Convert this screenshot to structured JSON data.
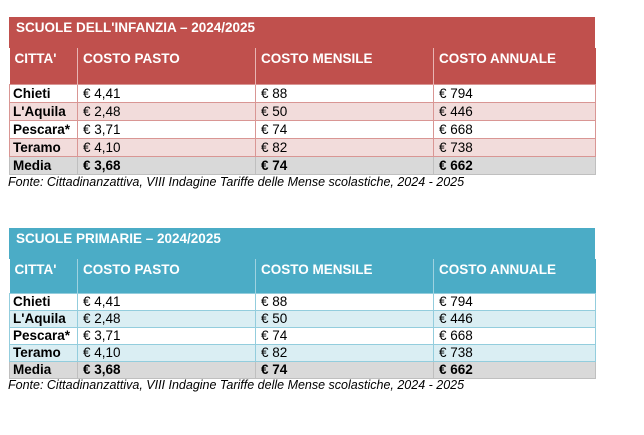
{
  "tables": [
    {
      "title": "SCUOLE DELL'INFANZIA – 2024/2025",
      "headers": [
        "CITTA'",
        "COSTO PASTO",
        "COSTO MENSILE",
        "COSTO ANNUALE"
      ],
      "rows": [
        [
          "Chieti",
          "€ 4,41",
          "€ 88",
          "€ 794"
        ],
        [
          "L'Aquila",
          "€ 2,48",
          "€ 50",
          "€ 446"
        ],
        [
          "Pescara*",
          "€ 3,71",
          "€ 74",
          "€ 668"
        ],
        [
          "Teramo",
          "€ 4,10",
          "€ 82",
          "€ 738"
        ]
      ],
      "average": [
        "Media",
        "€ 3,68",
        "€ 74",
        "€ 662"
      ],
      "source": "Fonte: Cittadinanzattiva, VIII Indagine Tariffe delle Mense scolastiche, 2024 - 2025",
      "accent_color": "#c0504d"
    },
    {
      "title": "SCUOLE PRIMARIE – 2024/2025",
      "headers": [
        "CITTA'",
        "COSTO PASTO",
        "COSTO MENSILE",
        "COSTO ANNUALE"
      ],
      "rows": [
        [
          "Chieti",
          "€ 4,41",
          "€ 88",
          "€ 794"
        ],
        [
          "L'Aquila",
          "€ 2,48",
          "€ 50",
          "€ 446"
        ],
        [
          "Pescara*",
          "€ 3,71",
          "€ 74",
          "€ 668"
        ],
        [
          "Teramo",
          "€ 4,10",
          "€ 82",
          "€ 738"
        ]
      ],
      "average": [
        "Media",
        "€ 3,68",
        "€ 74",
        "€ 662"
      ],
      "source": "Fonte: Cittadinanzattiva, VIII Indagine Tariffe delle Mense scolastiche, 2024 - 2025",
      "accent_color": "#4bacc6"
    }
  ]
}
